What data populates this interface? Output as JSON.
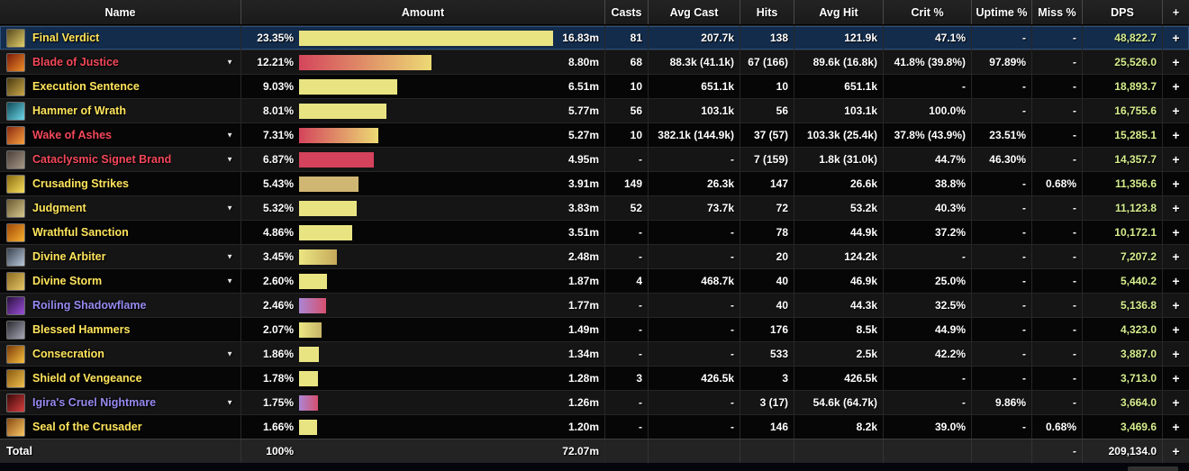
{
  "colors": {
    "name_schools": {
      "holy": "#ffe55c",
      "radiant": "#f4485a",
      "shadow": "#968af0",
      "total": "#ffffff"
    },
    "dps_text": "#d6ee8e",
    "selected_row_bg": "#132c4c",
    "bars": {
      "yellow": [
        "#e9e482",
        "#e9e482"
      ],
      "tan": [
        "#cfb673",
        "#cfb673"
      ],
      "red": [
        "#d4425c",
        "#d4425c"
      ],
      "red_yellow": [
        "#d4455c",
        "#ecda74"
      ],
      "yellow_gold": [
        "#ece784",
        "#c5a95a"
      ],
      "yellow_tan": [
        "#ece784",
        "#c7b469"
      ],
      "purple_pink": [
        "#ab86d4",
        "#d6506e"
      ]
    }
  },
  "table": {
    "expand_label": "+",
    "expander_glyph": "▼",
    "columns": [
      {
        "key": "name",
        "label": "Name"
      },
      {
        "key": "amount",
        "label": "Amount"
      },
      {
        "key": "casts",
        "label": "Casts"
      },
      {
        "key": "avg_cast",
        "label": "Avg Cast"
      },
      {
        "key": "hits",
        "label": "Hits"
      },
      {
        "key": "avg_hit",
        "label": "Avg Hit"
      },
      {
        "key": "crit",
        "label": "Crit %"
      },
      {
        "key": "uptime",
        "label": "Uptime %"
      },
      {
        "key": "miss",
        "label": "Miss %"
      },
      {
        "key": "dps",
        "label": "DPS"
      },
      {
        "key": "expand",
        "label": "+"
      }
    ],
    "rows": [
      {
        "name": "Final Verdict",
        "school": "holy",
        "selected": true,
        "expandable": false,
        "icon": {
          "name": "final-verdict-icon",
          "colors": [
            "#5a4a1e",
            "#e3d06b"
          ]
        },
        "pct": "23.35%",
        "pct_value": 23.35,
        "amount": "16.83m",
        "bar": "yellow",
        "casts": "81",
        "avg_cast": "207.7k",
        "hits": "138",
        "avg_hit": "121.9k",
        "crit": "47.1%",
        "uptime": "-",
        "miss": "-",
        "dps": "48,822.7"
      },
      {
        "name": "Blade of Justice",
        "school": "radiant",
        "selected": false,
        "expandable": true,
        "icon": {
          "name": "blade-of-justice-icon",
          "colors": [
            "#7a1a08",
            "#f08f2a"
          ]
        },
        "pct": "12.21%",
        "pct_value": 12.21,
        "amount": "8.80m",
        "bar": "red_yellow",
        "casts": "68",
        "avg_cast": "88.3k (41.1k)",
        "hits": "67 (166)",
        "avg_hit": "89.6k (16.8k)",
        "crit": "41.8% (39.8%)",
        "uptime": "97.89%",
        "miss": "-",
        "dps": "25,526.0"
      },
      {
        "name": "Execution Sentence",
        "school": "holy",
        "selected": false,
        "expandable": false,
        "icon": {
          "name": "execution-sentence-icon",
          "colors": [
            "#4a3a10",
            "#caa84a"
          ]
        },
        "pct": "9.03%",
        "pct_value": 9.03,
        "amount": "6.51m",
        "bar": "yellow",
        "casts": "10",
        "avg_cast": "651.1k",
        "hits": "10",
        "avg_hit": "651.1k",
        "crit": "-",
        "uptime": "-",
        "miss": "-",
        "dps": "18,893.7"
      },
      {
        "name": "Hammer of Wrath",
        "school": "holy",
        "selected": false,
        "expandable": false,
        "icon": {
          "name": "hammer-of-wrath-icon",
          "colors": [
            "#0d4a5a",
            "#6fd8e8"
          ]
        },
        "pct": "8.01%",
        "pct_value": 8.01,
        "amount": "5.77m",
        "bar": "yellow",
        "casts": "56",
        "avg_cast": "103.1k",
        "hits": "56",
        "avg_hit": "103.1k",
        "crit": "100.0%",
        "uptime": "-",
        "miss": "-",
        "dps": "16,755.6"
      },
      {
        "name": "Wake of Ashes",
        "school": "radiant",
        "selected": false,
        "expandable": true,
        "icon": {
          "name": "wake-of-ashes-icon",
          "colors": [
            "#8a2a10",
            "#f8a040"
          ]
        },
        "pct": "7.31%",
        "pct_value": 7.31,
        "amount": "5.27m",
        "bar": "red_yellow",
        "casts": "10",
        "avg_cast": "382.1k (144.9k)",
        "hits": "37 (57)",
        "avg_hit": "103.3k (25.4k)",
        "crit": "37.8% (43.9%)",
        "uptime": "23.51%",
        "miss": "-",
        "dps": "15,285.1"
      },
      {
        "name": "Cataclysmic Signet Brand",
        "school": "radiant",
        "selected": false,
        "expandable": true,
        "icon": {
          "name": "cataclysmic-signet-brand-icon",
          "colors": [
            "#4a4038",
            "#a89888"
          ]
        },
        "pct": "6.87%",
        "pct_value": 6.87,
        "amount": "4.95m",
        "bar": "red",
        "casts": "-",
        "avg_cast": "-",
        "hits": "7 (159)",
        "avg_hit": "1.8k (31.0k)",
        "crit": "44.7%",
        "uptime": "46.30%",
        "miss": "-",
        "dps": "14,357.7"
      },
      {
        "name": "Crusading Strikes",
        "school": "holy",
        "selected": false,
        "expandable": false,
        "icon": {
          "name": "crusading-strikes-icon",
          "colors": [
            "#8a6a10",
            "#f8e060"
          ]
        },
        "pct": "5.43%",
        "pct_value": 5.43,
        "amount": "3.91m",
        "bar": "tan",
        "casts": "149",
        "avg_cast": "26.3k",
        "hits": "147",
        "avg_hit": "26.6k",
        "crit": "38.8%",
        "uptime": "-",
        "miss": "0.68%",
        "dps": "11,356.6"
      },
      {
        "name": "Judgment",
        "school": "holy",
        "selected": false,
        "expandable": true,
        "icon": {
          "name": "judgment-icon",
          "colors": [
            "#6a5a30",
            "#d8c890"
          ]
        },
        "pct": "5.32%",
        "pct_value": 5.32,
        "amount": "3.83m",
        "bar": "yellow",
        "casts": "52",
        "avg_cast": "73.7k",
        "hits": "72",
        "avg_hit": "53.2k",
        "crit": "40.3%",
        "uptime": "-",
        "miss": "-",
        "dps": "11,123.8"
      },
      {
        "name": "Wrathful Sanction",
        "school": "holy",
        "selected": false,
        "expandable": false,
        "icon": {
          "name": "wrathful-sanction-icon",
          "colors": [
            "#a04808",
            "#f8b030"
          ]
        },
        "pct": "4.86%",
        "pct_value": 4.86,
        "amount": "3.51m",
        "bar": "yellow",
        "casts": "-",
        "avg_cast": "-",
        "hits": "78",
        "avg_hit": "44.9k",
        "crit": "37.2%",
        "uptime": "-",
        "miss": "-",
        "dps": "10,172.1"
      },
      {
        "name": "Divine Arbiter",
        "school": "holy",
        "selected": false,
        "expandable": true,
        "icon": {
          "name": "divine-arbiter-icon",
          "colors": [
            "#3a4250",
            "#b8c8d8"
          ]
        },
        "pct": "3.45%",
        "pct_value": 3.45,
        "amount": "2.48m",
        "bar": "yellow_gold",
        "casts": "-",
        "avg_cast": "-",
        "hits": "20",
        "avg_hit": "124.2k",
        "crit": "-",
        "uptime": "-",
        "miss": "-",
        "dps": "7,207.2"
      },
      {
        "name": "Divine Storm",
        "school": "holy",
        "selected": false,
        "expandable": true,
        "icon": {
          "name": "divine-storm-icon",
          "colors": [
            "#8a6a20",
            "#e8c868"
          ]
        },
        "pct": "2.60%",
        "pct_value": 2.6,
        "amount": "1.87m",
        "bar": "yellow",
        "casts": "4",
        "avg_cast": "468.7k",
        "hits": "40",
        "avg_hit": "46.9k",
        "crit": "25.0%",
        "uptime": "-",
        "miss": "-",
        "dps": "5,440.2"
      },
      {
        "name": "Roiling Shadowflame",
        "school": "shadow",
        "selected": false,
        "expandable": false,
        "icon": {
          "name": "roiling-shadowflame-icon",
          "colors": [
            "#2a1040",
            "#9a50d8"
          ]
        },
        "pct": "2.46%",
        "pct_value": 2.46,
        "amount": "1.77m",
        "bar": "purple_pink",
        "casts": "-",
        "avg_cast": "-",
        "hits": "40",
        "avg_hit": "44.3k",
        "crit": "32.5%",
        "uptime": "-",
        "miss": "-",
        "dps": "5,136.8"
      },
      {
        "name": "Blessed Hammers",
        "school": "holy",
        "selected": false,
        "expandable": false,
        "icon": {
          "name": "blessed-hammers-icon",
          "colors": [
            "#2a2a30",
            "#a8a8b8"
          ]
        },
        "pct": "2.07%",
        "pct_value": 2.07,
        "amount": "1.49m",
        "bar": "yellow_tan",
        "casts": "-",
        "avg_cast": "-",
        "hits": "176",
        "avg_hit": "8.5k",
        "crit": "44.9%",
        "uptime": "-",
        "miss": "-",
        "dps": "4,323.0"
      },
      {
        "name": "Consecration",
        "school": "holy",
        "selected": false,
        "expandable": true,
        "icon": {
          "name": "consecration-icon",
          "colors": [
            "#7a3a08",
            "#f8c040"
          ]
        },
        "pct": "1.86%",
        "pct_value": 1.86,
        "amount": "1.34m",
        "bar": "yellow",
        "casts": "-",
        "avg_cast": "-",
        "hits": "533",
        "avg_hit": "2.5k",
        "crit": "42.2%",
        "uptime": "-",
        "miss": "-",
        "dps": "3,887.0"
      },
      {
        "name": "Shield of Vengeance",
        "school": "holy",
        "selected": false,
        "expandable": false,
        "icon": {
          "name": "shield-of-vengeance-icon",
          "colors": [
            "#8a5a10",
            "#f0c050"
          ]
        },
        "pct": "1.78%",
        "pct_value": 1.78,
        "amount": "1.28m",
        "bar": "yellow",
        "casts": "3",
        "avg_cast": "426.5k",
        "hits": "3",
        "avg_hit": "426.5k",
        "crit": "-",
        "uptime": "-",
        "miss": "-",
        "dps": "3,713.0"
      },
      {
        "name": "Igira's Cruel Nightmare",
        "school": "shadow",
        "selected": false,
        "expandable": true,
        "icon": {
          "name": "igiras-cruel-nightmare-icon",
          "colors": [
            "#3a0808",
            "#d84040"
          ]
        },
        "pct": "1.75%",
        "pct_value": 1.75,
        "amount": "1.26m",
        "bar": "purple_pink",
        "casts": "-",
        "avg_cast": "-",
        "hits": "3 (17)",
        "avg_hit": "54.6k (64.7k)",
        "crit": "-",
        "uptime": "9.86%",
        "miss": "-",
        "dps": "3,664.0"
      },
      {
        "name": "Seal of the Crusader",
        "school": "holy",
        "selected": false,
        "expandable": false,
        "icon": {
          "name": "seal-of-the-crusader-icon",
          "colors": [
            "#8a4a10",
            "#f8c868"
          ]
        },
        "pct": "1.66%",
        "pct_value": 1.66,
        "amount": "1.20m",
        "bar": "yellow",
        "casts": "-",
        "avg_cast": "-",
        "hits": "146",
        "avg_hit": "8.2k",
        "crit": "39.0%",
        "uptime": "-",
        "miss": "0.68%",
        "dps": "3,469.6"
      }
    ],
    "total": {
      "label": "Total",
      "pct": "100%",
      "amount": "72.07m",
      "casts": "",
      "avg_cast": "",
      "hits": "",
      "avg_hit": "",
      "crit": "",
      "uptime": "",
      "miss": "-",
      "dps": "209,134.0"
    }
  }
}
